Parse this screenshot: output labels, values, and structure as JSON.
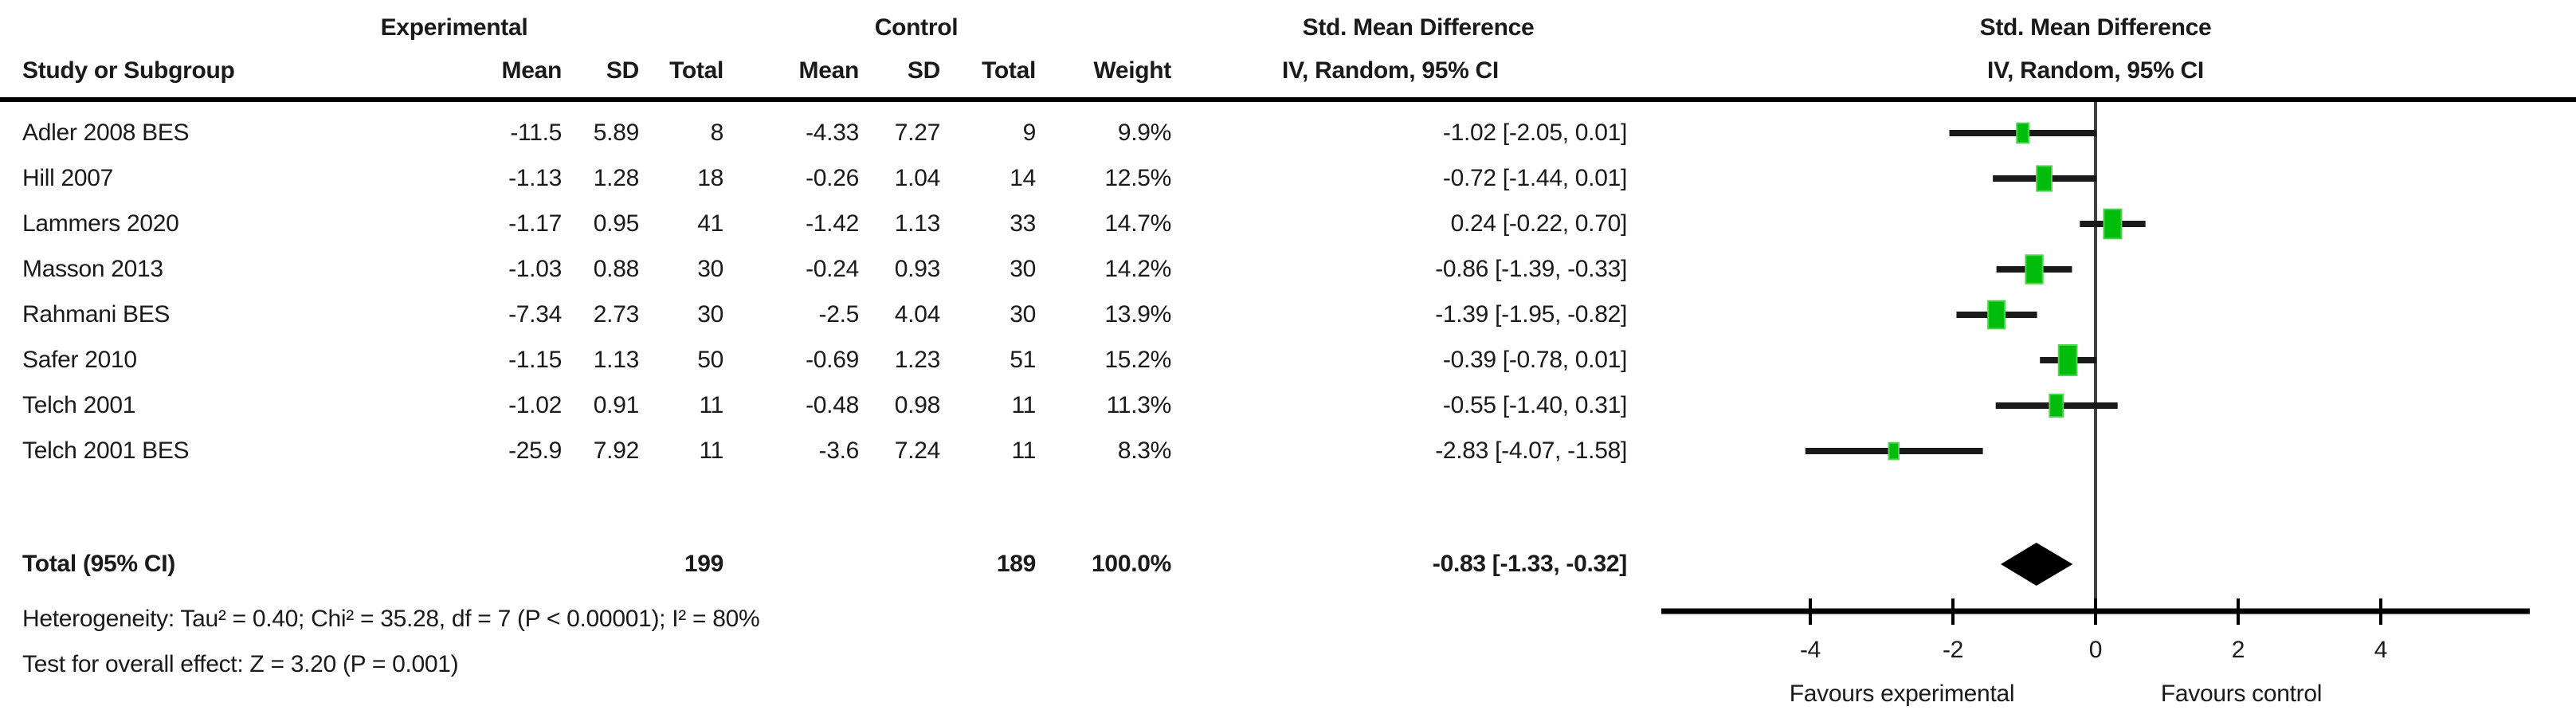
{
  "table": {
    "group_headers": {
      "experimental": "Experimental",
      "control": "Control",
      "smd": "Std. Mean Difference"
    },
    "col_headers": {
      "study": "Study or Subgroup",
      "mean": "Mean",
      "sd": "SD",
      "total": "Total",
      "weight": "Weight",
      "ci": "IV, Random, 95% CI"
    },
    "rows": [
      {
        "study": "Adler 2008 BES",
        "mean_e": "-11.5",
        "sd_e": "5.89",
        "total_e": "8",
        "mean_c": "-4.33",
        "sd_c": "7.27",
        "total_c": "9",
        "weight": "9.9%",
        "ci": "-1.02 [-2.05, 0.01]"
      },
      {
        "study": "Hill 2007",
        "mean_e": "-1.13",
        "sd_e": "1.28",
        "total_e": "18",
        "mean_c": "-0.26",
        "sd_c": "1.04",
        "total_c": "14",
        "weight": "12.5%",
        "ci": "-0.72 [-1.44, 0.01]"
      },
      {
        "study": "Lammers 2020",
        "mean_e": "-1.17",
        "sd_e": "0.95",
        "total_e": "41",
        "mean_c": "-1.42",
        "sd_c": "1.13",
        "total_c": "33",
        "weight": "14.7%",
        "ci": "0.24 [-0.22, 0.70]"
      },
      {
        "study": "Masson 2013",
        "mean_e": "-1.03",
        "sd_e": "0.88",
        "total_e": "30",
        "mean_c": "-0.24",
        "sd_c": "0.93",
        "total_c": "30",
        "weight": "14.2%",
        "ci": "-0.86 [-1.39, -0.33]"
      },
      {
        "study": "Rahmani BES",
        "mean_e": "-7.34",
        "sd_e": "2.73",
        "total_e": "30",
        "mean_c": "-2.5",
        "sd_c": "4.04",
        "total_c": "30",
        "weight": "13.9%",
        "ci": "-1.39 [-1.95, -0.82]"
      },
      {
        "study": "Safer 2010",
        "mean_e": "-1.15",
        "sd_e": "1.13",
        "total_e": "50",
        "mean_c": "-0.69",
        "sd_c": "1.23",
        "total_c": "51",
        "weight": "15.2%",
        "ci": "-0.39 [-0.78, 0.01]"
      },
      {
        "study": "Telch 2001",
        "mean_e": "-1.02",
        "sd_e": "0.91",
        "total_e": "11",
        "mean_c": "-0.48",
        "sd_c": "0.98",
        "total_c": "11",
        "weight": "11.3%",
        "ci": "-0.55 [-1.40, 0.31]"
      },
      {
        "study": "Telch 2001 BES",
        "mean_e": "-25.9",
        "sd_e": "7.92",
        "total_e": "11",
        "mean_c": "-3.6",
        "sd_c": "7.24",
        "total_c": "11",
        "weight": "8.3%",
        "ci": "-2.83 [-4.07, -1.58]"
      }
    ],
    "total_row": {
      "label": "Total (95% CI)",
      "total_e": "199",
      "total_c": "189",
      "weight": "100.0%",
      "ci": "-0.83 [-1.33, -0.32]"
    }
  },
  "plot": {
    "header_line1": "Std. Mean Difference",
    "header_line2": "IV, Random, 95% CI"
  },
  "footer": {
    "heterogeneity": "Heterogeneity: Tau² = 0.40; Chi² = 35.28, df = 7 (P < 0.00001); I² = 80%",
    "overall_effect": "Test for overall effect: Z = 3.20 (P = 0.001)"
  },
  "colors": {
    "square": "#00BD0B",
    "square_edge": "#4ED44E",
    "diamond": "#000000",
    "ci_line": "#1a1a1a",
    "zero_line": "#404040",
    "axis": "#000000"
  },
  "chart_data": {
    "type": "forest",
    "title": "Std. Mean Difference",
    "method": "IV, Random, 95% CI",
    "x_ticks": [
      -4,
      -2,
      0,
      2,
      4
    ],
    "xlim": [
      -6.1,
      6.1
    ],
    "favours_left": "Favours experimental",
    "favours_right": "Favours control",
    "studies": [
      {
        "name": "Adler 2008 BES",
        "estimate": -1.02,
        "ci_low": -2.05,
        "ci_high": 0.01,
        "weight_pct": 9.9
      },
      {
        "name": "Hill 2007",
        "estimate": -0.72,
        "ci_low": -1.44,
        "ci_high": 0.01,
        "weight_pct": 12.5
      },
      {
        "name": "Lammers 2020",
        "estimate": 0.24,
        "ci_low": -0.22,
        "ci_high": 0.7,
        "weight_pct": 14.7
      },
      {
        "name": "Masson 2013",
        "estimate": -0.86,
        "ci_low": -1.39,
        "ci_high": -0.33,
        "weight_pct": 14.2
      },
      {
        "name": "Rahmani BES",
        "estimate": -1.39,
        "ci_low": -1.95,
        "ci_high": -0.82,
        "weight_pct": 13.9
      },
      {
        "name": "Safer 2010",
        "estimate": -0.39,
        "ci_low": -0.78,
        "ci_high": 0.01,
        "weight_pct": 15.2
      },
      {
        "name": "Telch 2001",
        "estimate": -0.55,
        "ci_low": -1.4,
        "ci_high": 0.31,
        "weight_pct": 11.3
      },
      {
        "name": "Telch 2001 BES",
        "estimate": -2.83,
        "ci_low": -4.07,
        "ci_high": -1.58,
        "weight_pct": 8.3
      }
    ],
    "total": {
      "estimate": -0.83,
      "ci_low": -1.33,
      "ci_high": -0.32
    }
  }
}
